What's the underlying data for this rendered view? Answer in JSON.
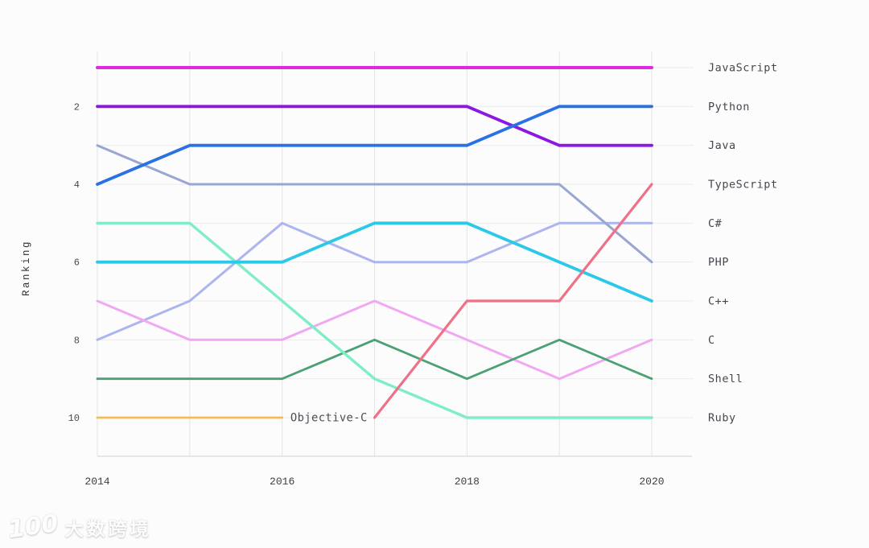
{
  "watermark": {
    "logo": "100",
    "text": "大数跨境"
  },
  "chart_data": {
    "type": "line",
    "subtype": "bump-ranking",
    "title": "",
    "ylabel": "Ranking",
    "xlabel": "",
    "x": [
      2014,
      2015,
      2016,
      2017,
      2018,
      2019,
      2020
    ],
    "x_ticks": [
      2014,
      2016,
      2018,
      2020
    ],
    "y_ticks": [
      2,
      4,
      6,
      8,
      10
    ],
    "ylim": [
      1,
      10
    ],
    "y_axis_inverted": true,
    "grid": true,
    "legend_position": "right-at-line-end",
    "series": [
      {
        "name": "Objective-C",
        "color": "#f2bb55",
        "stroke_width": 2.8,
        "ranks": [
          10,
          10,
          10,
          null,
          null,
          null,
          null
        ],
        "label_inline": true
      },
      {
        "name": "C#",
        "color": "#adb5f0",
        "stroke_width": 3.0,
        "ranks": [
          8,
          7,
          5,
          6,
          6,
          5,
          5
        ]
      },
      {
        "name": "PHP",
        "color": "#9aa6d2",
        "stroke_width": 3.0,
        "ranks": [
          3,
          4,
          4,
          4,
          4,
          4,
          6
        ]
      },
      {
        "name": "C",
        "color": "#f0a8f2",
        "stroke_width": 3.0,
        "ranks": [
          7,
          8,
          8,
          7,
          8,
          9,
          8
        ]
      },
      {
        "name": "Shell",
        "color": "#4ba173",
        "stroke_width": 2.8,
        "ranks": [
          9,
          9,
          9,
          8,
          9,
          8,
          9
        ]
      },
      {
        "name": "Ruby",
        "color": "#7feec6",
        "stroke_width": 3.4,
        "ranks": [
          5,
          5,
          7,
          9,
          10,
          10,
          10
        ]
      },
      {
        "name": "C++",
        "color": "#2cc8e8",
        "stroke_width": 3.8,
        "ranks": [
          6,
          6,
          6,
          5,
          5,
          6,
          7
        ]
      },
      {
        "name": "TypeScript",
        "color": "#ee7187",
        "stroke_width": 3.2,
        "ranks": [
          null,
          null,
          null,
          10,
          7,
          7,
          4
        ]
      },
      {
        "name": "Java",
        "color": "#8b18e2",
        "stroke_width": 3.8,
        "ranks": [
          2,
          2,
          2,
          2,
          2,
          3,
          3
        ]
      },
      {
        "name": "Python",
        "color": "#2a72e4",
        "stroke_width": 3.8,
        "ranks": [
          4,
          3,
          3,
          3,
          3,
          2,
          2
        ]
      },
      {
        "name": "JavaScript",
        "color": "#df29df",
        "stroke_width": 4.0,
        "ranks": [
          1,
          1,
          1,
          1,
          1,
          1,
          1
        ]
      }
    ],
    "colors": {
      "grid_horizontal": "#ececec",
      "grid_vertical": "#e4e4e4",
      "axis_baseline": "#d8d8d8",
      "tick_text": "#4a4a4a",
      "label_text": "#43474d"
    }
  }
}
